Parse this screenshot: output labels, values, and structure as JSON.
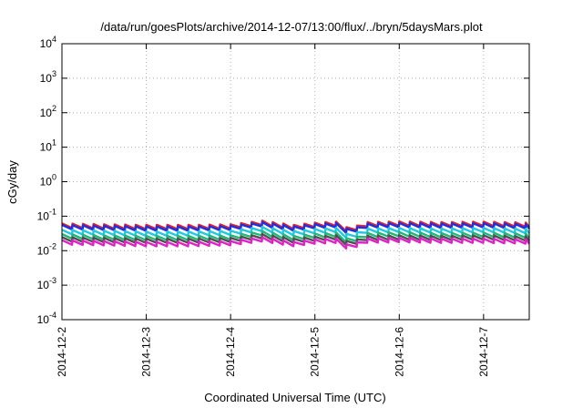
{
  "chart_data": {
    "type": "line",
    "title": "/data/run/goesPlots/archive/2014-12-07/13:00/flux/../bryn/5daysMars.plot",
    "xlabel": "Coordinated Universal Time (UTC)",
    "ylabel": "cGy/day",
    "y_scale": "log",
    "ylim": [
      0.0001,
      10000
    ],
    "y_ticks": [
      {
        "value": 0.0001,
        "base": "10",
        "exp": "-4"
      },
      {
        "value": 0.001,
        "base": "10",
        "exp": "-3"
      },
      {
        "value": 0.01,
        "base": "10",
        "exp": "-2"
      },
      {
        "value": 0.1,
        "base": "10",
        "exp": "-1"
      },
      {
        "value": 1,
        "base": "10",
        "exp": "0"
      },
      {
        "value": 10,
        "base": "10",
        "exp": "1"
      },
      {
        "value": 100,
        "base": "10",
        "exp": "2"
      },
      {
        "value": 1000,
        "base": "10",
        "exp": "3"
      },
      {
        "value": 10000,
        "base": "10",
        "exp": "4"
      }
    ],
    "xlim": [
      "2014-12-02T00:00",
      "2014-12-07T13:00"
    ],
    "x_ticks": [
      "2014-12-2",
      "2014-12-3",
      "2014-12-4",
      "2014-12-5",
      "2014-12-6",
      "2014-12-7"
    ],
    "grid": true,
    "x": [
      "2014-12-02T00:00",
      "2014-12-02T12:00",
      "2014-12-03T00:00",
      "2014-12-03T12:00",
      "2014-12-04T00:00",
      "2014-12-04T09:00",
      "2014-12-04T18:00",
      "2014-12-05T00:00",
      "2014-12-05T06:00",
      "2014-12-05T10:00",
      "2014-12-05T14:00",
      "2014-12-06T00:00",
      "2014-12-06T12:00",
      "2014-12-07T00:00",
      "2014-12-07T13:00"
    ],
    "series": [
      {
        "color": "#e8202a",
        "values": [
          0.055,
          0.052,
          0.05,
          0.05,
          0.052,
          0.066,
          0.05,
          0.058,
          0.062,
          0.038,
          0.06,
          0.063,
          0.06,
          0.062,
          0.058
        ]
      },
      {
        "color": "#2030e0",
        "values": [
          0.05,
          0.047,
          0.045,
          0.045,
          0.047,
          0.06,
          0.045,
          0.053,
          0.056,
          0.034,
          0.054,
          0.057,
          0.054,
          0.056,
          0.052
        ]
      },
      {
        "color": "#20c8e0",
        "values": [
          0.036,
          0.034,
          0.032,
          0.032,
          0.034,
          0.044,
          0.033,
          0.038,
          0.041,
          0.024,
          0.039,
          0.041,
          0.039,
          0.041,
          0.038
        ]
      },
      {
        "color": "#20b878",
        "values": [
          0.027,
          0.025,
          0.024,
          0.024,
          0.025,
          0.033,
          0.024,
          0.028,
          0.03,
          0.018,
          0.029,
          0.031,
          0.029,
          0.03,
          0.028
        ]
      },
      {
        "color": "#505050",
        "values": [
          0.022,
          0.021,
          0.02,
          0.02,
          0.021,
          0.027,
          0.02,
          0.023,
          0.025,
          0.015,
          0.024,
          0.025,
          0.024,
          0.025,
          0.023
        ]
      },
      {
        "color": "#e020c8",
        "values": [
          0.018,
          0.017,
          0.016,
          0.016,
          0.017,
          0.022,
          0.016,
          0.019,
          0.02,
          0.012,
          0.02,
          0.021,
          0.02,
          0.02,
          0.019
        ]
      }
    ]
  }
}
